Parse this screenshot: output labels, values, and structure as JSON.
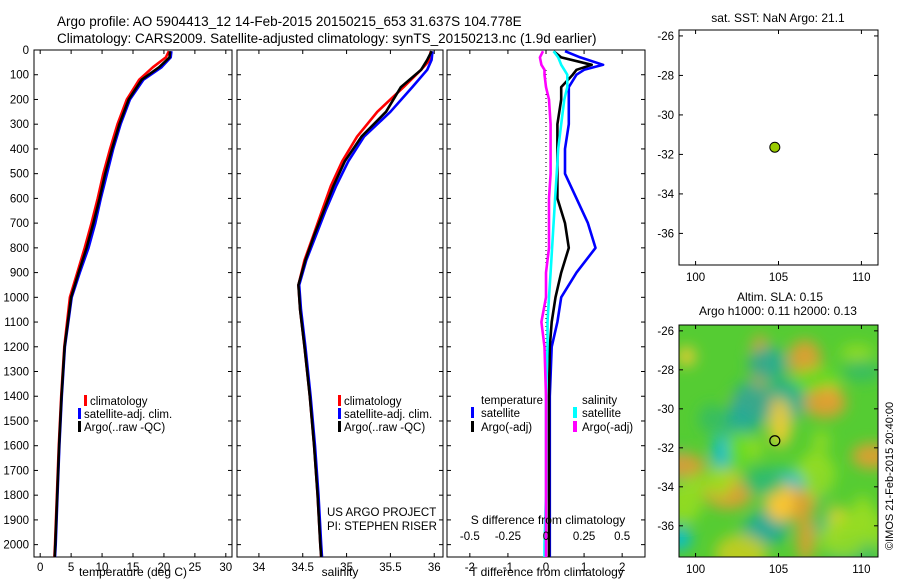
{
  "title": {
    "line1": "Argo profile: AO 5904413_12 14-Feb-2015 20150215_653 31.637S 104.778E",
    "line2": "Climatology: CARS2009. Satellite-adjusted climatology: synTS_20150213.nc (1.9d earlier)"
  },
  "colors": {
    "climatology": "#ff0000",
    "satellite": "#0000ff",
    "argo": "#000000",
    "sat_s": "#00ffff",
    "argo_s": "#ff00ff",
    "float_marker": "#99cc00"
  },
  "chart_data": [
    {
      "id": "temperature",
      "type": "line",
      "xlabel": "temperature (deg C)",
      "xlim": [
        -1,
        31
      ],
      "ylim": [
        0,
        2050
      ],
      "y_reversed": true,
      "xticks": [
        0,
        5,
        10,
        15,
        20,
        25,
        30
      ],
      "yticks": [
        0,
        100,
        200,
        300,
        400,
        500,
        600,
        700,
        800,
        900,
        1000,
        1100,
        1200,
        1300,
        1400,
        1500,
        1600,
        1700,
        1800,
        1900,
        2000
      ],
      "legend": [
        "climatology",
        "satellite-adj. clim.",
        "Argo(..raw -QC)"
      ],
      "series": [
        {
          "name": "climatology",
          "color": "#ff0000",
          "depth": [
            5,
            30,
            70,
            120,
            200,
            300,
            400,
            500,
            600,
            700,
            800,
            900,
            1000,
            1200,
            1400,
            1600,
            1800,
            2000,
            2050
          ],
          "values": [
            20.8,
            20.3,
            18.2,
            16.0,
            14.0,
            12.5,
            11.3,
            10.2,
            9.3,
            8.3,
            7.2,
            6.0,
            4.8,
            3.9,
            3.4,
            3.0,
            2.7,
            2.4,
            2.3
          ]
        },
        {
          "name": "satellite-adj. clim.",
          "color": "#0000ff",
          "depth": [
            5,
            30,
            70,
            120,
            200,
            300,
            400,
            500,
            600,
            700,
            800,
            900,
            1000,
            1200,
            1400,
            1600,
            1800,
            2000,
            2050
          ],
          "values": [
            21.2,
            21.1,
            19.6,
            16.7,
            14.5,
            13.0,
            11.8,
            10.8,
            9.8,
            8.9,
            7.8,
            6.4,
            5.1,
            4.0,
            3.5,
            3.1,
            2.8,
            2.5,
            2.4
          ]
        },
        {
          "name": "Argo(..raw -QC)",
          "color": "#000000",
          "depth": [
            5,
            30,
            70,
            120,
            200,
            300,
            400,
            500,
            600,
            700,
            800,
            900,
            1000,
            1200,
            1400,
            1600,
            1800,
            2000,
            2050
          ],
          "values": [
            21.0,
            20.9,
            19.2,
            16.4,
            14.3,
            12.8,
            11.6,
            10.5,
            9.6,
            8.6,
            7.5,
            6.2,
            5.0,
            3.95,
            3.45,
            3.05,
            2.75,
            2.45,
            2.35
          ]
        }
      ]
    },
    {
      "id": "salinity",
      "type": "line",
      "xlabel": "salinity",
      "xlim": [
        33.75,
        36.1
      ],
      "ylim": [
        0,
        2050
      ],
      "y_reversed": true,
      "xticks": [
        34,
        34.5,
        35,
        35.5,
        36
      ],
      "legend": [
        "climatology",
        "satellite-adj. clim.",
        "Argo(..raw -QC)"
      ],
      "annotation": [
        "US ARGO PROJECT",
        "PI: STEPHEN RISER"
      ],
      "series": [
        {
          "name": "climatology",
          "color": "#ff0000",
          "depth": [
            5,
            40,
            80,
            150,
            250,
            350,
            450,
            550,
            650,
            750,
            850,
            950,
            1050,
            1200,
            1400,
            1600,
            1800,
            2000,
            2050
          ],
          "values": [
            35.96,
            35.95,
            35.85,
            35.65,
            35.35,
            35.12,
            34.95,
            34.82,
            34.72,
            34.62,
            34.52,
            34.45,
            34.47,
            34.52,
            34.58,
            34.63,
            34.67,
            34.7,
            34.71
          ]
        },
        {
          "name": "satellite-adj. clim.",
          "color": "#0000ff",
          "depth": [
            5,
            40,
            80,
            150,
            250,
            350,
            450,
            550,
            650,
            750,
            850,
            950,
            1050,
            1200,
            1400,
            1600,
            1800,
            2000,
            2050
          ],
          "values": [
            35.98,
            35.97,
            35.92,
            35.75,
            35.5,
            35.2,
            35.02,
            34.88,
            34.76,
            34.65,
            34.54,
            34.46,
            34.48,
            34.53,
            34.59,
            34.64,
            34.68,
            34.71,
            34.72
          ]
        },
        {
          "name": "Argo(..raw -QC)",
          "color": "#000000",
          "depth": [
            5,
            40,
            80,
            150,
            250,
            350,
            450,
            550,
            650,
            750,
            850,
            950,
            1050,
            1200,
            1400,
            1600,
            1800,
            2000,
            2050
          ],
          "values": [
            35.97,
            35.92,
            35.85,
            35.62,
            35.45,
            35.17,
            34.98,
            34.85,
            34.74,
            34.63,
            34.53,
            34.45,
            34.47,
            34.52,
            34.58,
            34.63,
            34.67,
            34.7,
            34.71
          ]
        }
      ]
    },
    {
      "id": "differences",
      "type": "line",
      "xlabel": "T difference from climatology",
      "xlabel_top": "S difference from climatology",
      "xlim": [
        -2.6,
        2.6
      ],
      "ylim": [
        0,
        2050
      ],
      "y_reversed": true,
      "xticks": [
        -2,
        -1,
        0,
        1,
        2
      ],
      "s_ticks": [
        "-0.5",
        "-0.25",
        "0",
        "0.25",
        "0.5"
      ],
      "legend_headers": [
        "temperature",
        "salinity"
      ],
      "legend": [
        "satellite",
        "Argo(-adj)",
        "satellite",
        "Argo(-adj)"
      ],
      "series": [
        {
          "name": "T satellite",
          "color": "#0000ff",
          "depth": [
            5,
            30,
            60,
            80,
            100,
            150,
            200,
            300,
            400,
            500,
            600,
            700,
            800,
            900,
            1000,
            1100,
            1200,
            1400,
            1600,
            1800,
            2000,
            2050
          ],
          "values": [
            0.5,
            0.9,
            1.5,
            1.0,
            0.8,
            0.6,
            0.6,
            0.6,
            0.5,
            0.5,
            0.8,
            1.1,
            1.3,
            0.8,
            0.4,
            0.3,
            0.15,
            0.1,
            0.1,
            0.1,
            0.1,
            0.1
          ]
        },
        {
          "name": "T Argo(-adj)",
          "color": "#000000",
          "depth": [
            5,
            30,
            60,
            80,
            100,
            150,
            200,
            300,
            400,
            500,
            600,
            700,
            800,
            900,
            1000,
            1100,
            1200,
            1400,
            1600,
            1800,
            2000,
            2050
          ],
          "values": [
            0.2,
            0.4,
            1.2,
            0.8,
            0.7,
            0.4,
            0.4,
            0.3,
            0.3,
            0.3,
            0.3,
            0.5,
            0.6,
            0.4,
            0.25,
            0.15,
            0.1,
            0.08,
            0.08,
            0.08,
            0.08,
            0.08
          ]
        },
        {
          "name": "S satellite",
          "color": "#00ffff",
          "depth": [
            5,
            30,
            60,
            80,
            100,
            150,
            200,
            300,
            400,
            500,
            600,
            700,
            800,
            900,
            1000,
            1100,
            1200,
            1400,
            1600,
            1800,
            2000,
            2050
          ],
          "values": [
            0.05,
            0.08,
            0.1,
            0.12,
            0.14,
            0.14,
            0.12,
            0.1,
            0.08,
            0.07,
            0.06,
            0.05,
            0.04,
            0.03,
            0.02,
            0.01,
            0.01,
            0.0,
            0.0,
            0.0,
            -0.01,
            -0.01
          ]
        },
        {
          "name": "S Argo(-adj)",
          "color": "#ff00ff",
          "depth": [
            5,
            30,
            60,
            80,
            100,
            150,
            200,
            300,
            400,
            500,
            600,
            700,
            800,
            900,
            1000,
            1100,
            1200,
            1400,
            1600,
            1800,
            2000,
            2050
          ],
          "values": [
            -0.02,
            -0.04,
            -0.03,
            -0.01,
            -0.01,
            0.0,
            0.02,
            0.03,
            0.03,
            0.03,
            0.02,
            0.02,
            0.02,
            0.0,
            0.0,
            -0.03,
            -0.01,
            0.0,
            0.0,
            0.0,
            0.0,
            0.0
          ]
        }
      ]
    },
    {
      "id": "sst_map",
      "type": "scatter",
      "title": "sat. SST: NaN Argo: 21.1",
      "xlim": [
        99,
        111
      ],
      "ylim": [
        -37.6,
        -25.7
      ],
      "xticks": [
        100,
        105,
        110
      ],
      "yticks": [
        -26,
        -28,
        -30,
        -32,
        -34,
        -36
      ],
      "points": [
        {
          "lon": 104.778,
          "lat": -31.637
        }
      ]
    },
    {
      "id": "sla_map",
      "type": "heatmap",
      "title_line1": "Altim. SLA: 0.15",
      "title_line2": "Argo h1000: 0.11 h2000: 0.13",
      "xlim": [
        99,
        111
      ],
      "ylim": [
        -37.6,
        -25.7
      ],
      "xticks": [
        100,
        105,
        110
      ],
      "yticks": [
        -26,
        -28,
        -30,
        -32,
        -34,
        -36
      ],
      "points": [
        {
          "lon": 104.778,
          "lat": -31.637
        }
      ]
    }
  ],
  "watermark": "©IMOS 21-Feb-2015 20:40:00"
}
